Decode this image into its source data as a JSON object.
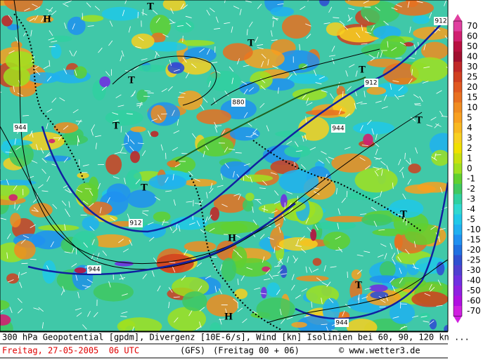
{
  "map": {
    "labels": [
      "H",
      "T",
      "T",
      "T",
      "T",
      "T",
      "T",
      "T",
      "T",
      "H",
      "T",
      "H"
    ],
    "contour_labels": [
      "912",
      "912",
      "880",
      "944",
      "944",
      "912",
      "944",
      "944"
    ],
    "legend": {
      "labels": [
        "70",
        "60",
        "50",
        "40",
        "30",
        "25",
        "20",
        "15",
        "10",
        "5",
        "4",
        "3",
        "2",
        "1",
        "0",
        "-1",
        "-2",
        "-3",
        "-4",
        "-5",
        "-10",
        "-15",
        "-20",
        "-25",
        "-30",
        "-40",
        "-50",
        "-60",
        "-70"
      ]
    }
  },
  "caption": {
    "line1": "300 hPa Geopotential [gpdm], Divergenz [10E-6/s], Wind [kn] Isolinien bei 60, 90, 120 kn ...",
    "date": "Freitag, 27-05-2005  06 UTC",
    "model": "(GFS)",
    "run": "(Freitag 00 + 06)",
    "copyright": "© www.wetter3.de"
  }
}
